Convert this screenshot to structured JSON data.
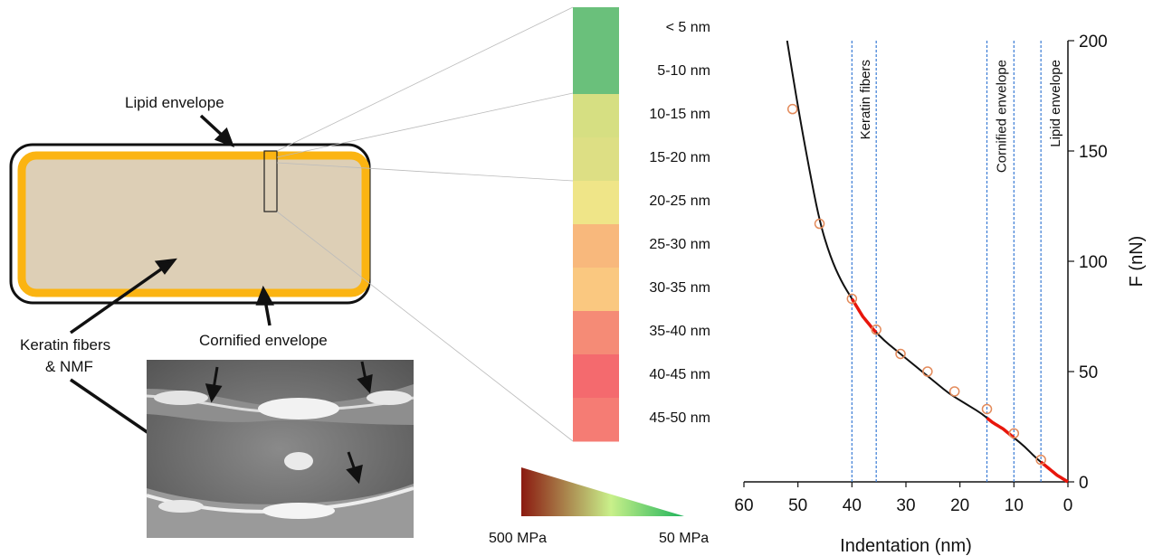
{
  "cell_diagram": {
    "labels": {
      "lipid_envelope": "Lipid envelope",
      "keratin_fibers_line1": "Keratin fibers",
      "keratin_fibers_line2": "& NMF",
      "cornified_envelope": "Cornified envelope"
    }
  },
  "color_scale": {
    "bands": [
      {
        "label": "< 5 nm",
        "color": "#6ac07b"
      },
      {
        "label": "5-10 nm",
        "color": "#6ac07b"
      },
      {
        "label": "10-15 nm",
        "color": "#d6df82"
      },
      {
        "label": "15-20 nm",
        "color": "#dddf84"
      },
      {
        "label": "20-25 nm",
        "color": "#efe588"
      },
      {
        "label": "25-30 nm",
        "color": "#f8b87c"
      },
      {
        "label": "30-35 nm",
        "color": "#fac880"
      },
      {
        "label": "35-40 nm",
        "color": "#f58b76"
      },
      {
        "label": "40-45 nm",
        "color": "#f46a6e"
      },
      {
        "label": "45-50 nm",
        "color": "#f57c74"
      }
    ]
  },
  "modulus_gradient": {
    "left_label": "500 MPa",
    "right_label": "50 MPa",
    "colors": [
      "#8b1a10",
      "#c9f08a",
      "#1db35a"
    ]
  },
  "chart_data": {
    "type": "line",
    "xlabel": "Indentation (nm)",
    "ylabel": "F (nN)",
    "xlim": [
      60,
      0
    ],
    "ylim": [
      0,
      200
    ],
    "x_ticks": [
      60,
      50,
      40,
      30,
      20,
      10,
      0
    ],
    "y_ticks": [
      0,
      50,
      100,
      150,
      200
    ],
    "curve": {
      "x": [
        52,
        50,
        48,
        46,
        44,
        42,
        40,
        38,
        36,
        34,
        32,
        30,
        28,
        26,
        24,
        22,
        20,
        18,
        16,
        14,
        12,
        10,
        8,
        6,
        4,
        2,
        0
      ],
      "y": [
        200,
        170,
        143,
        118,
        102,
        91,
        83,
        75,
        69,
        64,
        60,
        56,
        52,
        48,
        44,
        40,
        37,
        34,
        31,
        27,
        24,
        20,
        16,
        11,
        7,
        3,
        0
      ]
    },
    "highlight_segments": [
      [
        40,
        35.5
      ],
      [
        15,
        10
      ],
      [
        5,
        0
      ]
    ],
    "highlight_color": "#e8160c",
    "markers": {
      "x": [
        51,
        46,
        40,
        35.5,
        31,
        26,
        21,
        15,
        10,
        5
      ],
      "y": [
        169,
        117,
        83,
        69,
        58,
        50,
        41,
        33,
        22,
        10
      ],
      "color": "#e38a5a"
    },
    "vertical_lines": [
      40,
      35.5,
      15,
      10,
      5
    ],
    "vertical_line_color": "#3a7bd5",
    "annotations": [
      {
        "text": "Keratin fibers",
        "x": 37.7
      },
      {
        "text": "Cornified envelope",
        "x": 12.5
      },
      {
        "text": "Lipid envelope",
        "x": 2.5
      }
    ]
  }
}
